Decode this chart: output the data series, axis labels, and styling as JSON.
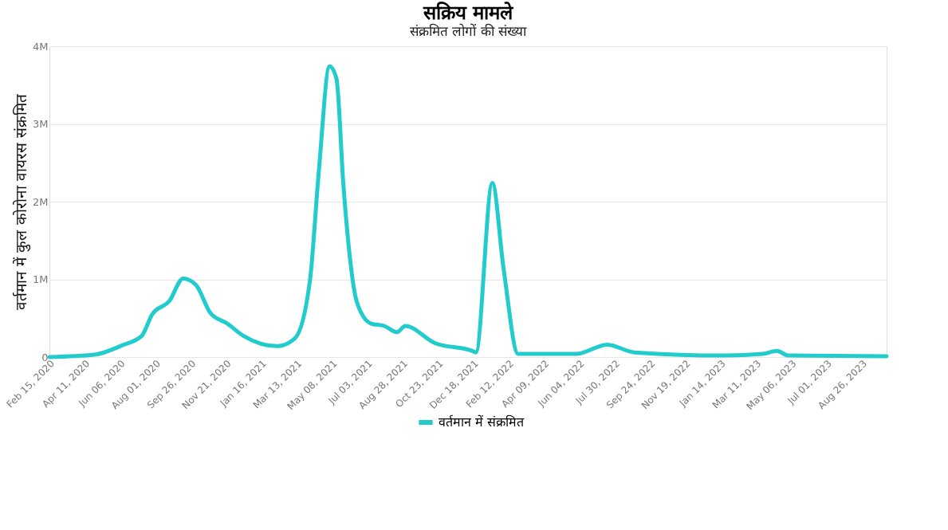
{
  "chart_data": {
    "type": "line",
    "title": "सक्रिय मामले",
    "subtitle": "संक्रमित लोगों की संख्या",
    "ylabel": "वर्तमान में कुल कोरोना वायरस संक्रमित",
    "x": [
      "2020-02-15",
      "2020-04-26",
      "2020-06-09",
      "2020-07-10",
      "2020-07-27",
      "2020-08-23",
      "2020-09-14",
      "2020-10-04",
      "2020-10-27",
      "2020-11-23",
      "2020-12-19",
      "2021-02-10",
      "2021-03-10",
      "2021-04-03",
      "2021-04-17",
      "2021-05-04",
      "2021-05-15",
      "2021-05-26",
      "2021-06-17",
      "2021-07-09",
      "2021-07-30",
      "2021-08-19",
      "2021-09-01",
      "2021-10-18",
      "2021-12-16",
      "2021-12-22",
      "2022-01-17",
      "2022-02-04",
      "2022-02-27",
      "2022-05-30",
      "2022-07-18",
      "2022-08-30",
      "2023-01-21",
      "2023-03-22",
      "2023-04-13",
      "2023-05-01",
      "2023-10-04"
    ],
    "series": [
      {
        "name": "वर्तमान में संक्रमित",
        "color": "#22cccc",
        "values": [
          0,
          30000,
          150000,
          270000,
          550000,
          720000,
          1010000,
          930000,
          570000,
          430000,
          270000,
          140000,
          240000,
          990000,
          2390000,
          3740000,
          3580000,
          2210000,
          690000,
          430000,
          400000,
          320000,
          400000,
          180000,
          80000,
          60000,
          2240000,
          1130000,
          40000,
          40000,
          160000,
          60000,
          20000,
          40000,
          80000,
          20000,
          10000
        ]
      }
    ],
    "xlim": [
      "2020-02-15",
      "2023-10-04"
    ],
    "xticks": [
      {
        "value": "2020-02-15",
        "label": "Feb 15, 2020"
      },
      {
        "value": "2020-04-11",
        "label": "Apr 11, 2020"
      },
      {
        "value": "2020-06-06",
        "label": "Jun 06, 2020"
      },
      {
        "value": "2020-08-01",
        "label": "Aug 01, 2020"
      },
      {
        "value": "2020-09-26",
        "label": "Sep 26, 2020"
      },
      {
        "value": "2020-11-21",
        "label": "Nov 21, 2020"
      },
      {
        "value": "2021-01-16",
        "label": "Jan 16, 2021"
      },
      {
        "value": "2021-03-13",
        "label": "Mar 13, 2021"
      },
      {
        "value": "2021-05-08",
        "label": "May 08, 2021"
      },
      {
        "value": "2021-07-03",
        "label": "Jul 03, 2021"
      },
      {
        "value": "2021-08-28",
        "label": "Aug 28, 2021"
      },
      {
        "value": "2021-10-23",
        "label": "Oct 23, 2021"
      },
      {
        "value": "2021-12-18",
        "label": "Dec 18, 2021"
      },
      {
        "value": "2022-02-12",
        "label": "Feb 12, 2022"
      },
      {
        "value": "2022-04-09",
        "label": "Apr 09, 2022"
      },
      {
        "value": "2022-06-04",
        "label": "Jun 04, 2022"
      },
      {
        "value": "2022-07-30",
        "label": "Jul 30, 2022"
      },
      {
        "value": "2022-09-24",
        "label": "Sep 24, 2022"
      },
      {
        "value": "2022-11-19",
        "label": "Nov 19, 2022"
      },
      {
        "value": "2023-01-14",
        "label": "Jan 14, 2023"
      },
      {
        "value": "2023-03-11",
        "label": "Mar 11, 2023"
      },
      {
        "value": "2023-05-06",
        "label": "May 06, 2023"
      },
      {
        "value": "2023-07-01",
        "label": "Jul 01, 2023"
      },
      {
        "value": "2023-08-26",
        "label": "Aug 26, 2023"
      }
    ],
    "ylim": [
      0,
      4000000
    ],
    "yticks": [
      {
        "value": 0,
        "label": "0"
      },
      {
        "value": 1000000,
        "label": "1M"
      },
      {
        "value": 2000000,
        "label": "2M"
      },
      {
        "value": 3000000,
        "label": "3M"
      },
      {
        "value": 4000000,
        "label": "4M"
      }
    ],
    "grid": "y",
    "legend": "bottom",
    "marker": "none",
    "line_style": "solid"
  }
}
